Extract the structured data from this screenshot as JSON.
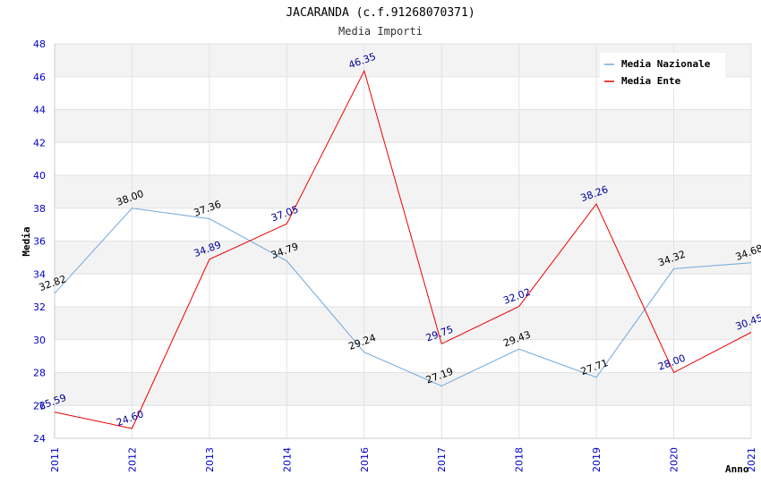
{
  "chart_data": {
    "type": "line",
    "title": "JACARANDA (c.f.91268070371)",
    "subtitle": "Media Importi",
    "xlabel": "Anno",
    "ylabel": "Media",
    "ylim": [
      24,
      48
    ],
    "yticks": [
      24,
      26,
      28,
      30,
      32,
      34,
      36,
      38,
      40,
      42,
      44,
      46,
      48
    ],
    "categories": [
      "2011",
      "2012",
      "2013",
      "2014",
      "2016",
      "2017",
      "2018",
      "2019",
      "2020",
      "2021"
    ],
    "series": [
      {
        "name": "Media Nazionale",
        "color": "#6fa8dc",
        "values": [
          32.82,
          38.0,
          37.36,
          34.79,
          29.24,
          27.19,
          29.43,
          27.71,
          34.32,
          34.68
        ],
        "labels": [
          "32.82",
          "38.00",
          "37.36",
          "34.79",
          "29.24",
          "27.19",
          "29.43",
          "27.71",
          "34.32",
          "34.68"
        ]
      },
      {
        "name": "Media Ente",
        "color": "#ee0000",
        "values": [
          25.59,
          24.6,
          34.89,
          37.05,
          46.35,
          29.75,
          32.02,
          38.26,
          28.0,
          30.45
        ],
        "labels": [
          "25.59",
          "24.60",
          "34.89",
          "37.05",
          "46.35",
          "29.75",
          "32.02",
          "38.26",
          "28.00",
          "30.45"
        ]
      }
    ],
    "legend": "top-right",
    "grid": true
  }
}
